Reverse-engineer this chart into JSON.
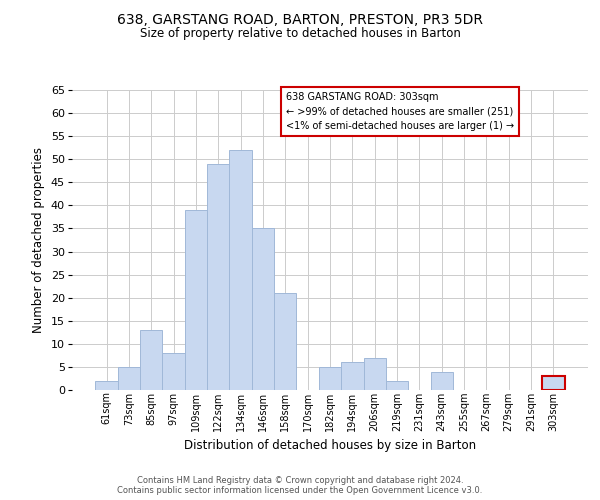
{
  "title": "638, GARSTANG ROAD, BARTON, PRESTON, PR3 5DR",
  "subtitle": "Size of property relative to detached houses in Barton",
  "xlabel": "Distribution of detached houses by size in Barton",
  "ylabel": "Number of detached properties",
  "bar_color": "#c8d8f0",
  "bar_edgecolor": "#a0b8d8",
  "categories": [
    "61sqm",
    "73sqm",
    "85sqm",
    "97sqm",
    "109sqm",
    "122sqm",
    "134sqm",
    "146sqm",
    "158sqm",
    "170sqm",
    "182sqm",
    "194sqm",
    "206sqm",
    "219sqm",
    "231sqm",
    "243sqm",
    "255sqm",
    "267sqm",
    "279sqm",
    "291sqm",
    "303sqm"
  ],
  "values": [
    2,
    5,
    13,
    8,
    39,
    49,
    52,
    35,
    21,
    0,
    5,
    6,
    7,
    2,
    0,
    4,
    0,
    0,
    0,
    0,
    3
  ],
  "highlight_index": 20,
  "highlight_color": "#c8d8f0",
  "highlight_edgecolor": "#cc0000",
  "ylim": [
    0,
    65
  ],
  "yticks": [
    0,
    5,
    10,
    15,
    20,
    25,
    30,
    35,
    40,
    45,
    50,
    55,
    60,
    65
  ],
  "legend_title": "638 GARSTANG ROAD: 303sqm",
  "legend_line1": "← >99% of detached houses are smaller (251)",
  "legend_line2": "<1% of semi-detached houses are larger (1) →",
  "legend_box_edgecolor": "#cc0000",
  "footer1": "Contains HM Land Registry data © Crown copyright and database right 2024.",
  "footer2": "Contains public sector information licensed under the Open Government Licence v3.0.",
  "grid_color": "#cccccc",
  "background_color": "#ffffff"
}
